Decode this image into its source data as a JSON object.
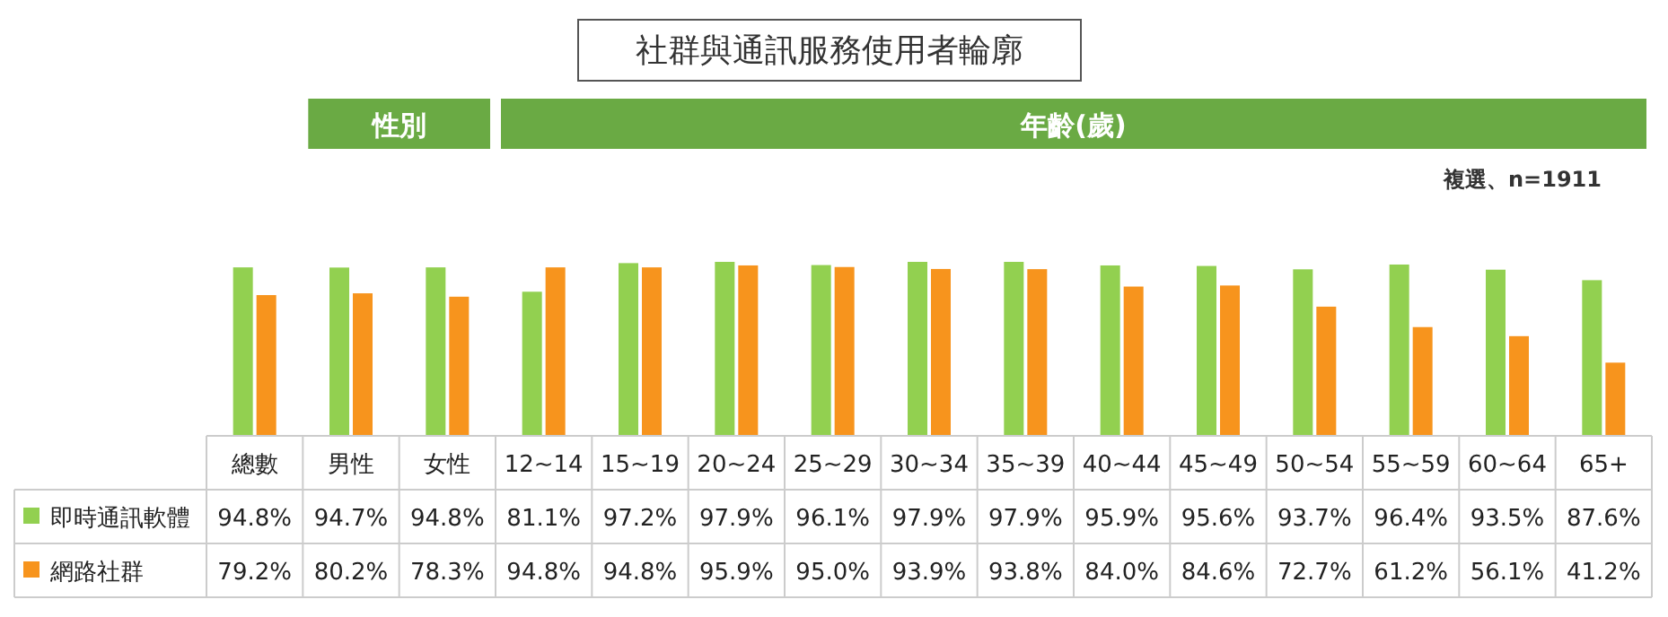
{
  "chart_data": {
    "type": "bar",
    "title": "社群與通訊服務使用者輪廓",
    "categories": [
      "總數",
      "男性",
      "女性",
      "12~14",
      "15~19",
      "20~24",
      "25~29",
      "30~34",
      "35~39",
      "40~44",
      "45~49",
      "50~54",
      "55~59",
      "60~64",
      "65+"
    ],
    "series": [
      {
        "name": "即時通訊軟體",
        "color": "#92d050",
        "values": [
          94.8,
          94.7,
          94.8,
          81.1,
          97.2,
          97.9,
          96.1,
          97.9,
          97.9,
          95.9,
          95.6,
          93.7,
          96.4,
          93.5,
          87.6
        ],
        "value_labels": [
          "94.8%",
          "94.7%",
          "94.8%",
          "81.1%",
          "97.2%",
          "97.9%",
          "96.1%",
          "97.9%",
          "97.9%",
          "95.9%",
          "95.6%",
          "93.7%",
          "96.4%",
          "93.5%",
          "87.6%"
        ]
      },
      {
        "name": "網路社群",
        "color": "#f7941d",
        "values": [
          79.2,
          80.2,
          78.3,
          94.8,
          94.8,
          95.9,
          95.0,
          93.9,
          93.8,
          84.0,
          84.6,
          72.7,
          61.2,
          56.1,
          41.2
        ],
        "value_labels": [
          "79.2%",
          "80.2%",
          "78.3%",
          "94.8%",
          "94.8%",
          "95.9%",
          "95.0%",
          "93.9%",
          "93.8%",
          "84.0%",
          "84.6%",
          "72.7%",
          "61.2%",
          "56.1%",
          "41.2%"
        ]
      }
    ],
    "legend": "bottom left",
    "annotations": [
      "性別",
      "年齡(歲)",
      "複選、n=1911"
    ]
  }
}
